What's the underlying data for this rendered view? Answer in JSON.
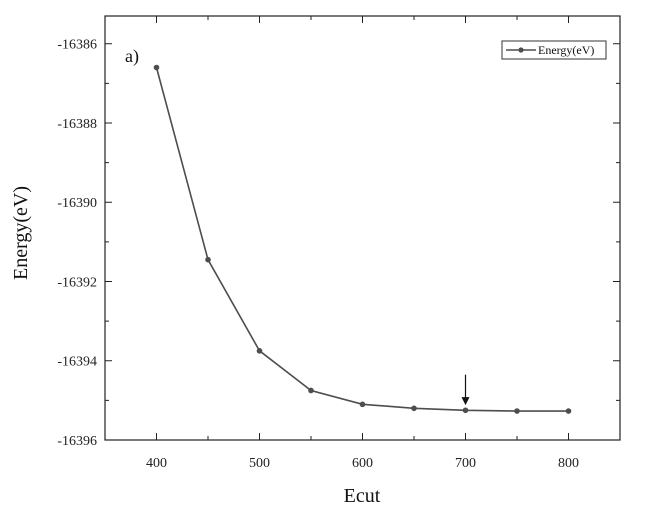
{
  "chart_data": {
    "type": "line",
    "panel_label": "a)",
    "xlabel": "Ecut",
    "ylabel": "Energy(eV)",
    "xlim": [
      350,
      850
    ],
    "ylim": [
      -16396,
      -16385.3
    ],
    "x_ticks": [
      400,
      500,
      600,
      700,
      800
    ],
    "y_ticks": [
      -16386,
      -16388,
      -16390,
      -16392,
      -16394,
      -16396
    ],
    "grid": false,
    "legend_position": "top-right",
    "series": [
      {
        "name": "Energy(eV)",
        "color": "#4d4d4d",
        "marker": "star",
        "x": [
          400,
          450,
          500,
          550,
          600,
          650,
          700,
          750,
          800
        ],
        "y": [
          -16386.6,
          -16391.45,
          -16393.75,
          -16394.75,
          -16395.1,
          -16395.2,
          -16395.25,
          -16395.27,
          -16395.27
        ]
      }
    ],
    "annotations": [
      {
        "type": "arrow-down",
        "x": 700,
        "y_from": -16394.35,
        "y_to": -16395.12
      }
    ]
  }
}
